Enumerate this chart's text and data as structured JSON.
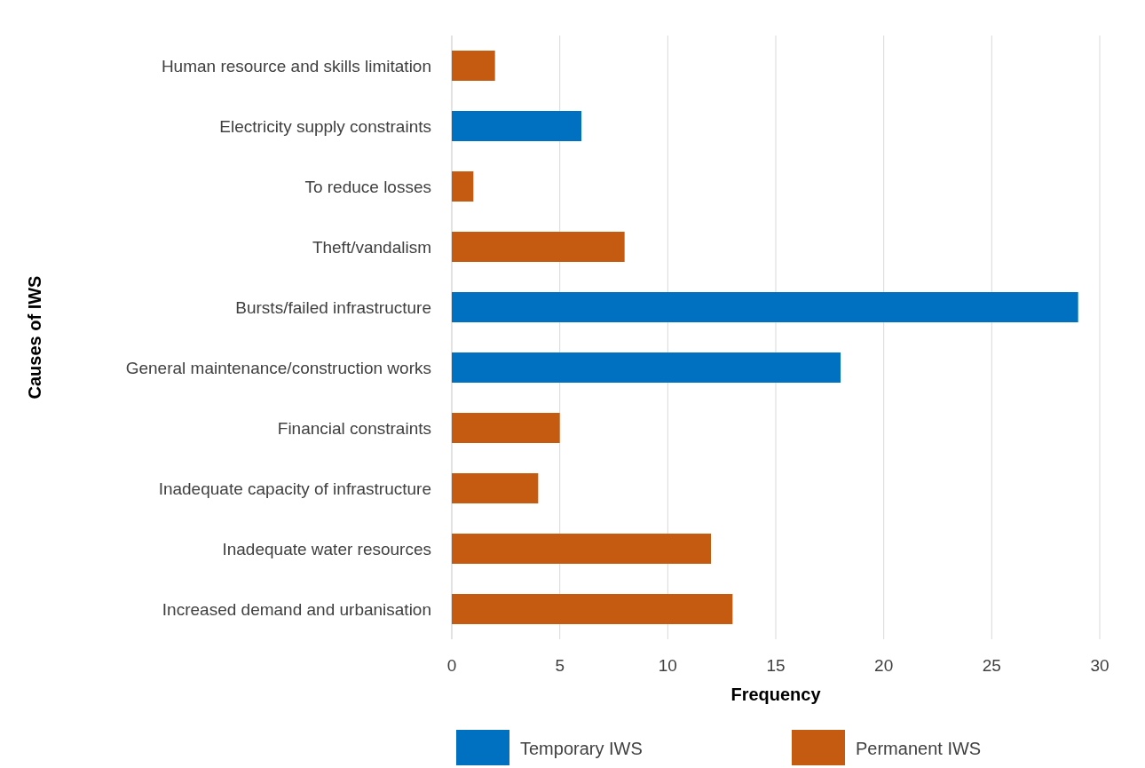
{
  "chart_data": {
    "type": "bar",
    "orientation": "horizontal",
    "stacked": true,
    "xlabel": "Frequency",
    "ylabel": "Causes of IWS",
    "categories": [
      "Human resource and skills limitation",
      "Electricity supply constraints",
      "To reduce losses",
      "Theft/vandalism",
      "Bursts/failed infrastructure",
      "General maintenance/construction works",
      "Financial constraints",
      "Inadequate capacity of infrastructure",
      "Inadequate water resources",
      "Increased demand and urbanisation"
    ],
    "series": [
      {
        "name": "Temporary IWS",
        "color": "#0070c0",
        "values": [
          null,
          6,
          null,
          null,
          29,
          18,
          null,
          null,
          null,
          null
        ]
      },
      {
        "name": "Permanent IWS",
        "color": "#c55a11",
        "values": [
          2,
          null,
          1,
          8,
          null,
          null,
          5,
          4,
          12,
          13
        ]
      }
    ],
    "xlim": [
      0,
      30
    ],
    "xticks": [
      0,
      5,
      10,
      15,
      20,
      25,
      30
    ],
    "grid": "x",
    "legend": "bottom"
  }
}
